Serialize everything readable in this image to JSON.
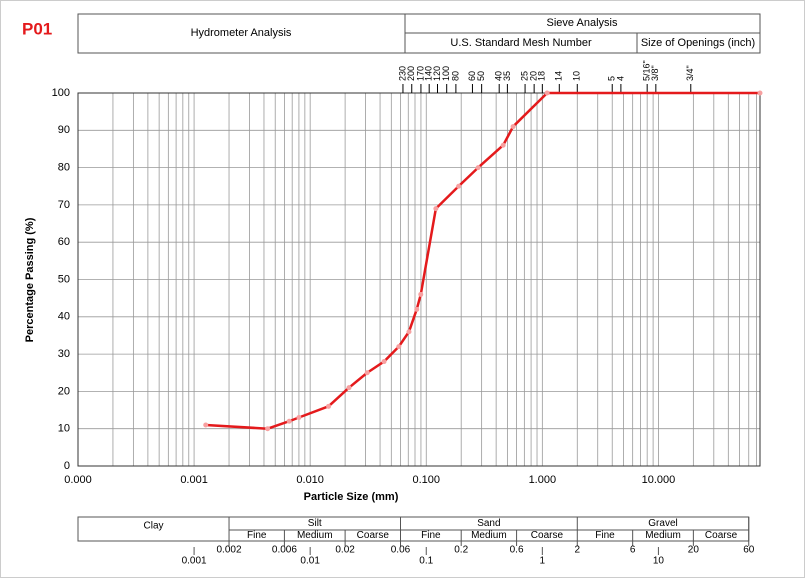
{
  "header": {
    "id": "P01",
    "hydrometer": "Hydrometer Analysis",
    "sieve": "Sieve Analysis",
    "mesh": "U.S. Standard Mesh Number",
    "openings": "Size of Openings (inch)"
  },
  "chart_data": {
    "type": "line",
    "xlabel": "Particle Size (mm)",
    "ylabel": "Percentage Passing (%)",
    "log_x": true,
    "grid": true,
    "color": "#e41a1c",
    "x": [
      0.00126,
      0.0043,
      0.0066,
      0.008,
      0.0144,
      0.0216,
      0.031,
      0.0433,
      0.058,
      0.071,
      0.0828,
      0.0897,
      0.121,
      0.19,
      0.28,
      0.46,
      0.56,
      1.1,
      75
    ],
    "values": [
      11,
      10,
      12,
      13,
      16,
      21,
      25,
      28,
      32,
      36,
      42,
      46,
      69,
      75,
      80,
      86,
      91,
      100,
      100
    ],
    "xlim": [
      0.0001,
      75
    ],
    "ylim": [
      0,
      100
    ],
    "xticks": [
      {
        "value": 0.0001,
        "label": "0.000"
      },
      {
        "value": 0.001,
        "label": "0.001"
      },
      {
        "value": 0.01,
        "label": "0.010"
      },
      {
        "value": 0.1,
        "label": "0.100"
      },
      {
        "value": 1,
        "label": "1.000"
      },
      {
        "value": 10,
        "label": "10.000"
      }
    ],
    "xminorticks": [
      0.0002,
      0.0003,
      0.0004,
      0.0005,
      0.0006,
      0.0007,
      0.0008,
      0.0009,
      0.002,
      0.003,
      0.004,
      0.005,
      0.006,
      0.007,
      0.008,
      0.009,
      0.02,
      0.03,
      0.04,
      0.05,
      0.06,
      0.07,
      0.08,
      0.09,
      0.2,
      0.3,
      0.4,
      0.5,
      0.6,
      0.7,
      0.8,
      0.9,
      2,
      3,
      4,
      5,
      6,
      7,
      8,
      9,
      20,
      30,
      40,
      50,
      60,
      70
    ],
    "yticks": [
      0,
      10,
      20,
      30,
      40,
      50,
      60,
      70,
      80,
      90,
      100
    ],
    "sieve_ticks": [
      {
        "value": 0.063,
        "label": "230"
      },
      {
        "value": 0.075,
        "label": "200"
      },
      {
        "value": 0.09,
        "label": "170"
      },
      {
        "value": 0.106,
        "label": "140"
      },
      {
        "value": 0.125,
        "label": "120"
      },
      {
        "value": 0.15,
        "label": "100"
      },
      {
        "value": 0.18,
        "label": "80"
      },
      {
        "value": 0.25,
        "label": "60"
      },
      {
        "value": 0.3,
        "label": "50"
      },
      {
        "value": 0.425,
        "label": "40"
      },
      {
        "value": 0.5,
        "label": "35"
      },
      {
        "value": 0.71,
        "label": "25"
      },
      {
        "value": 0.85,
        "label": "20"
      },
      {
        "value": 1.0,
        "label": "18"
      },
      {
        "value": 1.4,
        "label": "14"
      },
      {
        "value": 2.0,
        "label": "10"
      },
      {
        "value": 4.0,
        "label": "5"
      },
      {
        "value": 4.75,
        "label": "4"
      },
      {
        "value": 8.0,
        "label": "5/16\""
      },
      {
        "value": 9.5,
        "label": "3/8\""
      },
      {
        "value": 19.0,
        "label": "3/4\""
      }
    ]
  },
  "soil_scale": {
    "classes": [
      {
        "name": "Clay"
      },
      {
        "name": "Silt",
        "subclasses": [
          "Fine",
          "Medium",
          "Coarse"
        ]
      },
      {
        "name": "Sand",
        "subclasses": [
          "Fine",
          "Medium",
          "Coarse"
        ]
      },
      {
        "name": "Gravel",
        "subclasses": [
          "Fine",
          "Medium",
          "Coarse"
        ]
      }
    ],
    "upper_ticks": [
      0.002,
      0.006,
      0.02,
      0.06,
      0.2,
      0.6,
      2,
      6,
      20,
      60
    ],
    "lower_ticks": [
      0.001,
      0.01,
      0.1,
      1,
      10
    ]
  }
}
